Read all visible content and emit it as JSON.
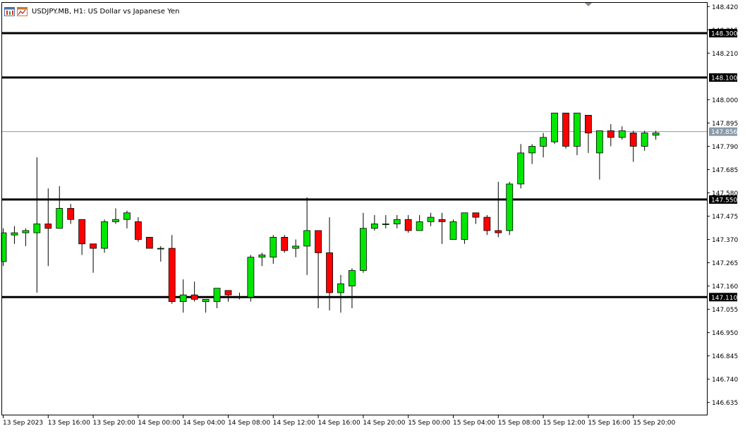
{
  "header": {
    "title": "USDJPY.MB, H1:  US Dollar vs Japanese Yen",
    "icons": [
      "chart-window-icon",
      "indicator-window-icon"
    ]
  },
  "chart_data": {
    "type": "candlestick",
    "symbol": "USDJPY.MB",
    "timeframe": "H1",
    "ylim": [
      146.58,
      148.44
    ],
    "y_ticks": [
      "148.420",
      "148.315",
      "148.210",
      "148.000",
      "147.895",
      "147.790",
      "147.685",
      "147.580",
      "147.475",
      "147.370",
      "147.265",
      "147.160",
      "147.055",
      "146.950",
      "146.845",
      "146.740",
      "146.635"
    ],
    "x_ticks": [
      "13 Sep 2023",
      "13 Sep 16:00",
      "13 Sep 20:00",
      "14 Sep 00:00",
      "14 Sep 04:00",
      "14 Sep 08:00",
      "14 Sep 12:00",
      "14 Sep 16:00",
      "14 Sep 20:00",
      "15 Sep 00:00",
      "15 Sep 04:00",
      "15 Sep 08:00",
      "15 Sep 12:00",
      "15 Sep 16:00",
      "15 Sep 20:00"
    ],
    "levels": [
      {
        "price": 148.3,
        "label": "148.300"
      },
      {
        "price": 148.1,
        "label": "148.100"
      },
      {
        "price": 147.55,
        "label": "147.550"
      },
      {
        "price": 147.11,
        "label": "147.110"
      }
    ],
    "current_price": {
      "price": 147.856,
      "label": "147.856"
    },
    "colors": {
      "up": "#00e600",
      "down": "#ff0000",
      "level": "#000000",
      "current": "#8a9aa8",
      "background": "#ffffff"
    },
    "candles": [
      {
        "open": 147.27,
        "high": 147.42,
        "low": 147.25,
        "close": 147.4
      },
      {
        "open": 147.39,
        "high": 147.43,
        "low": 147.35,
        "close": 147.4
      },
      {
        "open": 147.4,
        "high": 147.42,
        "low": 147.34,
        "close": 147.41
      },
      {
        "open": 147.4,
        "high": 147.74,
        "low": 147.13,
        "close": 147.44
      },
      {
        "open": 147.44,
        "high": 147.6,
        "low": 147.25,
        "close": 147.42
      },
      {
        "open": 147.42,
        "high": 147.61,
        "low": 147.42,
        "close": 147.51
      },
      {
        "open": 147.51,
        "high": 147.53,
        "low": 147.44,
        "close": 147.46
      },
      {
        "open": 147.46,
        "high": 147.46,
        "low": 147.3,
        "close": 147.35
      },
      {
        "open": 147.35,
        "high": 147.35,
        "low": 147.22,
        "close": 147.33
      },
      {
        "open": 147.33,
        "high": 147.46,
        "low": 147.31,
        "close": 147.45
      },
      {
        "open": 147.45,
        "high": 147.51,
        "low": 147.44,
        "close": 147.46
      },
      {
        "open": 147.46,
        "high": 147.5,
        "low": 147.42,
        "close": 147.49
      },
      {
        "open": 147.45,
        "high": 147.47,
        "low": 147.36,
        "close": 147.37
      },
      {
        "open": 147.38,
        "high": 147.38,
        "low": 147.33,
        "close": 147.33
      },
      {
        "open": 147.33,
        "high": 147.34,
        "low": 147.27,
        "close": 147.33
      },
      {
        "open": 147.33,
        "high": 147.39,
        "low": 147.08,
        "close": 147.09
      },
      {
        "open": 147.09,
        "high": 147.19,
        "low": 147.04,
        "close": 147.12
      },
      {
        "open": 147.12,
        "high": 147.18,
        "low": 147.09,
        "close": 147.1
      },
      {
        "open": 147.09,
        "high": 147.1,
        "low": 147.04,
        "close": 147.1
      },
      {
        "open": 147.09,
        "high": 147.15,
        "low": 147.06,
        "close": 147.15
      },
      {
        "open": 147.14,
        "high": 147.14,
        "low": 147.09,
        "close": 147.12
      },
      {
        "open": 147.11,
        "high": 147.13,
        "low": 147.1,
        "close": 147.11
      },
      {
        "open": 147.11,
        "high": 147.3,
        "low": 147.09,
        "close": 147.29
      },
      {
        "open": 147.29,
        "high": 147.31,
        "low": 147.25,
        "close": 147.3
      },
      {
        "open": 147.29,
        "high": 147.39,
        "low": 147.26,
        "close": 147.38
      },
      {
        "open": 147.38,
        "high": 147.39,
        "low": 147.31,
        "close": 147.32
      },
      {
        "open": 147.33,
        "high": 147.37,
        "low": 147.29,
        "close": 147.34
      },
      {
        "open": 147.34,
        "high": 147.56,
        "low": 147.21,
        "close": 147.41
      },
      {
        "open": 147.41,
        "high": 147.41,
        "low": 147.06,
        "close": 147.31
      },
      {
        "open": 147.31,
        "high": 147.47,
        "low": 147.05,
        "close": 147.13
      },
      {
        "open": 147.13,
        "high": 147.21,
        "low": 147.04,
        "close": 147.17
      },
      {
        "open": 147.16,
        "high": 147.24,
        "low": 147.06,
        "close": 147.23
      },
      {
        "open": 147.23,
        "high": 147.49,
        "low": 147.22,
        "close": 147.42
      },
      {
        "open": 147.42,
        "high": 147.48,
        "low": 147.41,
        "close": 147.44
      },
      {
        "open": 147.44,
        "high": 147.48,
        "low": 147.42,
        "close": 147.44
      },
      {
        "open": 147.44,
        "high": 147.48,
        "low": 147.42,
        "close": 147.46
      },
      {
        "open": 147.46,
        "high": 147.48,
        "low": 147.4,
        "close": 147.41
      },
      {
        "open": 147.41,
        "high": 147.48,
        "low": 147.41,
        "close": 147.45
      },
      {
        "open": 147.45,
        "high": 147.49,
        "low": 147.43,
        "close": 147.47
      },
      {
        "open": 147.46,
        "high": 147.49,
        "low": 147.35,
        "close": 147.45
      },
      {
        "open": 147.37,
        "high": 147.46,
        "low": 147.37,
        "close": 147.45
      },
      {
        "open": 147.37,
        "high": 147.49,
        "low": 147.35,
        "close": 147.49
      },
      {
        "open": 147.49,
        "high": 147.49,
        "low": 147.44,
        "close": 147.47
      },
      {
        "open": 147.47,
        "high": 147.48,
        "low": 147.39,
        "close": 147.41
      },
      {
        "open": 147.41,
        "high": 147.63,
        "low": 147.38,
        "close": 147.4
      },
      {
        "open": 147.41,
        "high": 147.63,
        "low": 147.39,
        "close": 147.62
      },
      {
        "open": 147.62,
        "high": 147.8,
        "low": 147.6,
        "close": 147.76
      },
      {
        "open": 147.76,
        "high": 147.8,
        "low": 147.71,
        "close": 147.79
      },
      {
        "open": 147.79,
        "high": 147.85,
        "low": 147.74,
        "close": 147.83
      },
      {
        "open": 147.81,
        "high": 147.94,
        "low": 147.8,
        "close": 147.94
      },
      {
        "open": 147.94,
        "high": 147.94,
        "low": 147.78,
        "close": 147.79
      },
      {
        "open": 147.79,
        "high": 147.94,
        "low": 147.75,
        "close": 147.94
      },
      {
        "open": 147.93,
        "high": 147.93,
        "low": 147.76,
        "close": 147.85
      },
      {
        "open": 147.76,
        "high": 147.86,
        "low": 147.64,
        "close": 147.86
      },
      {
        "open": 147.86,
        "high": 147.89,
        "low": 147.79,
        "close": 147.83
      },
      {
        "open": 147.83,
        "high": 147.88,
        "low": 147.82,
        "close": 147.86
      },
      {
        "open": 147.85,
        "high": 147.86,
        "low": 147.72,
        "close": 147.79
      },
      {
        "open": 147.79,
        "high": 147.86,
        "low": 147.77,
        "close": 147.85
      },
      {
        "open": 147.84,
        "high": 147.86,
        "low": 147.82,
        "close": 147.85
      }
    ]
  }
}
